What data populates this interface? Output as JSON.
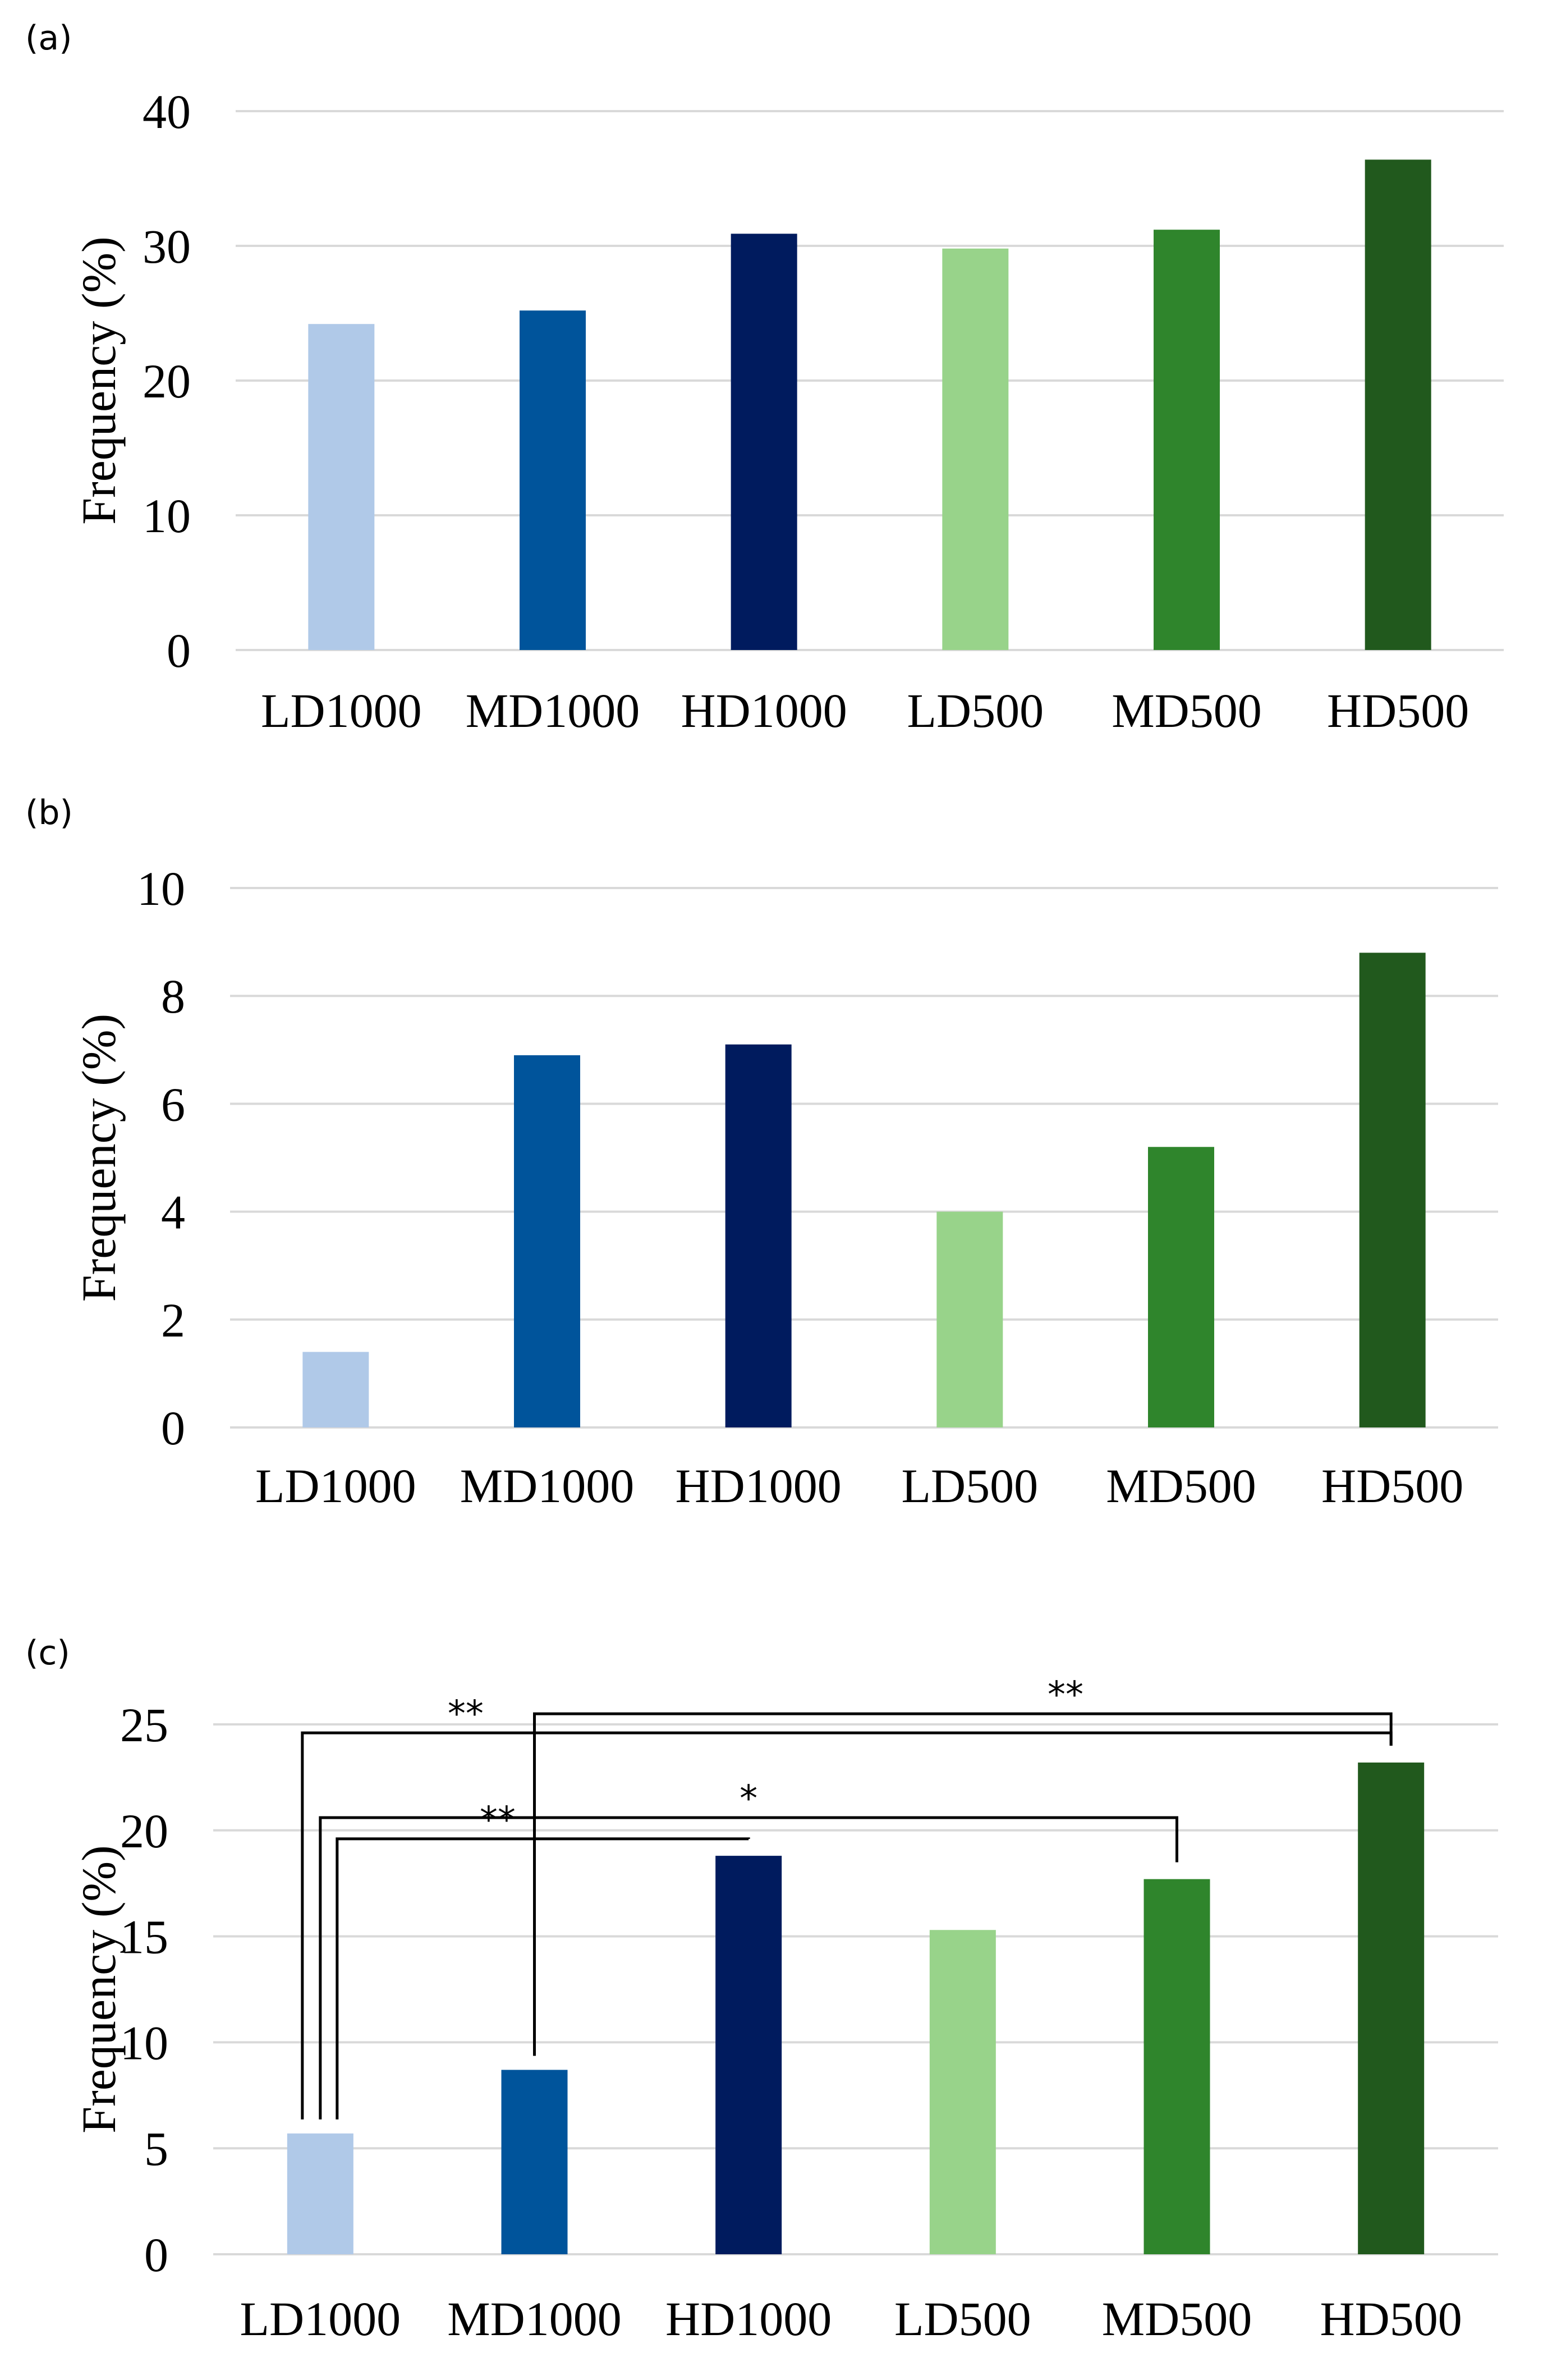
{
  "colors": [
    "#b0c9e8",
    "#00549b",
    "#001b5e",
    "#98d38a",
    "#2f852c",
    "#21591d"
  ],
  "chart_data": [
    {
      "type": "bar",
      "panel_label": "(a)",
      "categories": [
        "LD1000",
        "MD1000",
        "HD1000",
        "LD500",
        "MD500",
        "HD500"
      ],
      "values": [
        24.2,
        25.2,
        30.9,
        29.8,
        31.2,
        36.4
      ],
      "ylabel": "Frequency (%)",
      "ylim": [
        0,
        40
      ],
      "yticks": [
        0,
        10,
        20,
        30,
        40
      ],
      "grid": true
    },
    {
      "type": "bar",
      "panel_label": "(b)",
      "categories": [
        "LD1000",
        "MD1000",
        "HD1000",
        "LD500",
        "MD500",
        "HD500"
      ],
      "values": [
        1.4,
        6.9,
        7.1,
        4.0,
        5.2,
        8.8
      ],
      "ylabel": "Frequency (%)",
      "ylim": [
        0,
        10
      ],
      "yticks": [
        0,
        2,
        4,
        6,
        8,
        10
      ],
      "grid": true
    },
    {
      "type": "bar",
      "panel_label": "(c)",
      "categories": [
        "LD1000",
        "MD1000",
        "HD1000",
        "LD500",
        "MD500",
        "HD500"
      ],
      "values": [
        5.7,
        8.7,
        18.8,
        15.3,
        17.7,
        23.2
      ],
      "ylabel": "Frequency (%)",
      "ylim": [
        0,
        25
      ],
      "yticks": [
        0,
        5,
        10,
        15,
        20,
        25
      ],
      "grid": true,
      "significance": [
        {
          "from": "LD1000",
          "to": "HD1000",
          "label": "**"
        },
        {
          "from": "LD1000",
          "to": "MD500",
          "label": "*"
        },
        {
          "from": "LD1000",
          "to": "HD500",
          "label": "**"
        },
        {
          "from": "MD1000",
          "to": "HD500",
          "label": "**"
        }
      ]
    }
  ]
}
